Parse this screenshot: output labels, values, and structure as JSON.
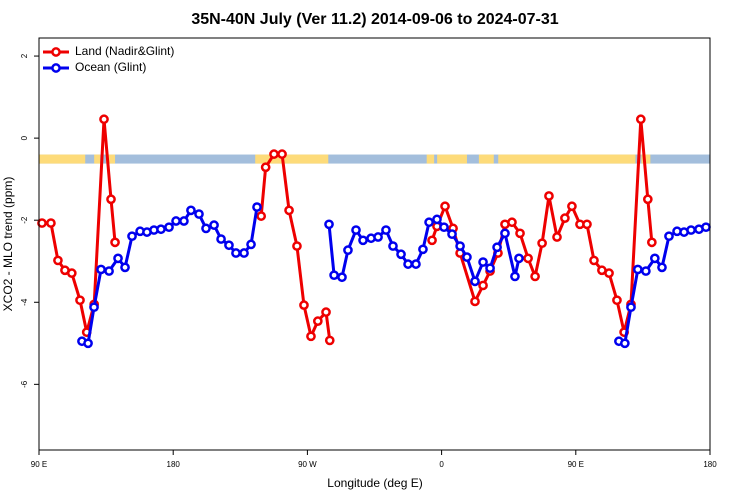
{
  "chart_data": {
    "type": "line",
    "title": "35N-40N July (Ver 11.2)   2014-09-06 to 2024-07-31",
    "x_label": "Longitude (deg E)",
    "y_label": "XCO2 - MLO trend (ppm)",
    "xlim": [
      90,
      540
    ],
    "ylim": [
      -7.6,
      2.44
    ],
    "xticks": [
      {
        "value": 90,
        "label": "90 E"
      },
      180,
      {
        "value": 270,
        "label": "90 W"
      },
      {
        "value": 360,
        "label": "0"
      },
      {
        "value": 450,
        "label": "90 E"
      },
      {
        "value": 540,
        "label": "180"
      }
    ],
    "yticks": [
      2,
      0,
      -2,
      -4,
      -6
    ],
    "legend": "top-left",
    "grid": false,
    "mask": {
      "ylim": [
        -0.4,
        -0.62
      ],
      "ocean_color": "#a3bedc",
      "land_color": "#fddb7a",
      "land": [
        [
          90,
          121
        ],
        [
          127,
          131
        ],
        [
          135,
          141
        ],
        [
          235,
          284
        ],
        [
          350,
          355
        ],
        [
          357,
          377
        ],
        [
          385,
          395
        ],
        [
          398,
          490
        ],
        [
          494,
          500
        ]
      ]
    },
    "series": [
      {
        "name": "Land (Nadir&Glint)",
        "color": "#ee0000",
        "x": [
          92,
          98,
          102.7,
          107.4,
          112,
          117.5,
          122,
          127,
          133.6,
          138.3,
          141,
          null,
          239,
          242,
          247.6,
          253,
          257.7,
          263,
          267.7,
          272.4,
          277,
          282.5,
          285,
          null,
          353.6,
          356.9,
          362.3,
          367.7,
          372.4,
          382.4,
          387.8,
          392.5,
          397.8,
          402.5,
          407.2,
          412.6,
          418,
          422.7,
          427.4,
          432,
          437.4,
          442.7,
          447.4,
          452.8,
          457.5,
          462.2,
          467.5,
          472.3,
          477.6,
          482.4,
          487,
          493.6,
          498.3,
          501
        ],
        "values": [
          -2.07,
          -2.07,
          -2.98,
          -3.22,
          -3.29,
          -3.95,
          -4.73,
          -4.05,
          0.46,
          -1.49,
          -2.54,
          null,
          -1.9,
          -0.71,
          -0.39,
          -0.39,
          -1.76,
          -2.63,
          -4.07,
          -4.83,
          -4.46,
          -4.24,
          -4.93,
          null,
          -2.49,
          -2.15,
          -1.66,
          -2.2,
          -2.8,
          -3.98,
          -3.59,
          -3.24,
          -2.8,
          -2.1,
          -2.05,
          -2.32,
          -2.93,
          -3.37,
          -2.56,
          -1.41,
          -2.41,
          -1.95,
          -1.66,
          -2.1,
          -2.1,
          -2.98,
          -3.22,
          -3.29,
          -3.95,
          -4.73,
          -4.05,
          0.46,
          -1.49,
          -2.54
        ]
      },
      {
        "name": "Ocean (Glint)",
        "color": "#0000ee",
        "x": [
          118.8,
          122.9,
          126.9,
          131.6,
          137,
          143,
          147.7,
          152.4,
          157.8,
          162.4,
          167.1,
          171.8,
          177.2,
          181.9,
          187.2,
          191.9,
          197.3,
          202,
          207.4,
          212.1,
          217.4,
          222.1,
          227.5,
          232.2,
          236.2,
          null,
          284.5,
          287.9,
          293.2,
          297.2,
          302.6,
          307.3,
          312.7,
          317.4,
          322.7,
          327.4,
          332.8,
          337.5,
          342.8,
          347.5,
          351.6,
          356.9,
          361.6,
          367,
          372.4,
          377,
          382.4,
          387.8,
          392.5,
          397.2,
          402.5,
          409.2,
          411.9,
          null,
          478.9,
          482.9,
          487,
          491.6,
          497,
          503,
          507.8,
          512.5,
          517.9,
          522.6,
          527.3,
          532.6,
          537.3
        ],
        "values": [
          -4.95,
          -5.0,
          -4.12,
          -3.2,
          -3.24,
          -2.93,
          -3.15,
          -2.39,
          -2.27,
          -2.29,
          -2.24,
          -2.22,
          -2.17,
          -2.02,
          -2.02,
          -1.76,
          -1.85,
          -2.2,
          -2.12,
          -2.46,
          -2.61,
          -2.8,
          -2.8,
          -2.59,
          -1.68,
          null,
          -2.1,
          -3.34,
          -3.39,
          -2.73,
          -2.24,
          -2.49,
          -2.44,
          -2.41,
          -2.24,
          -2.63,
          -2.83,
          -3.07,
          -3.07,
          -2.71,
          -2.05,
          -1.98,
          -2.17,
          -2.34,
          -2.63,
          -2.9,
          -3.49,
          -3.02,
          -3.17,
          -2.66,
          -2.32,
          -3.37,
          -2.93,
          null,
          -4.95,
          -5.0,
          -4.12,
          -3.2,
          -3.24,
          -2.93,
          -3.15,
          -2.39,
          -2.27,
          -2.29,
          -2.24,
          -2.22,
          -2.17
        ]
      }
    ]
  }
}
